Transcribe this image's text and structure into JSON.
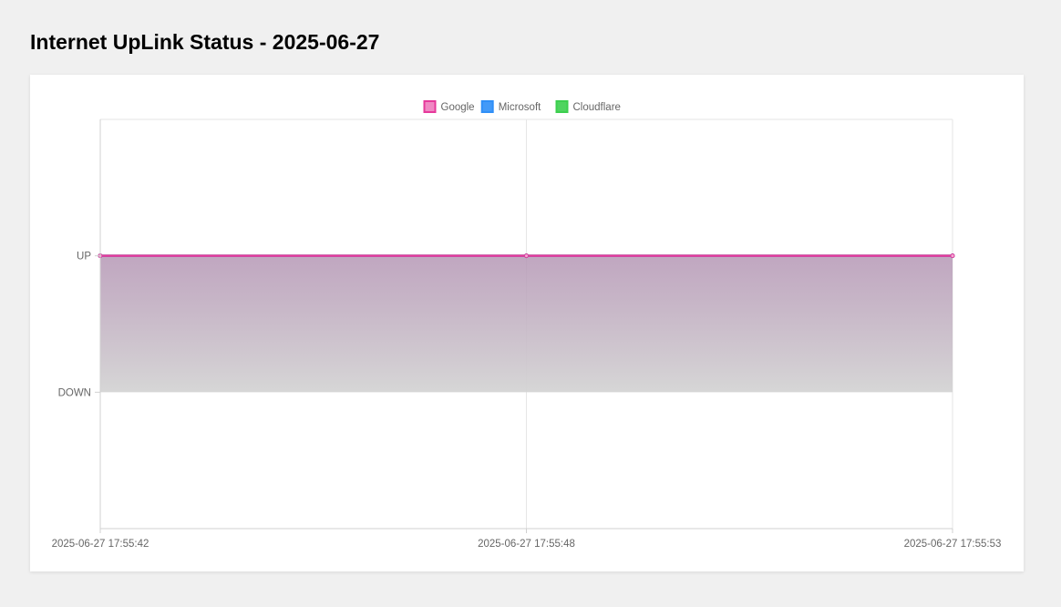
{
  "page": {
    "title": "Internet UpLink Status - 2025-06-27"
  },
  "chart_data": {
    "type": "line",
    "categories": [
      "2025-06-27 17:55:42",
      "2025-06-27 17:55:48",
      "2025-06-27 17:55:53"
    ],
    "y_categories": [
      "DOWN",
      "UP"
    ],
    "ylim": [
      -1,
      2
    ],
    "grid": true,
    "legend_position": "top-center",
    "series": [
      {
        "name": "Google",
        "values": [
          1,
          1,
          1
        ],
        "color": "#e6399b",
        "fill": true
      },
      {
        "name": "Microsoft",
        "values": [
          1,
          1,
          1
        ],
        "color": "#2f8ff7",
        "fill": true
      },
      {
        "name": "Cloudflare",
        "values": [
          1,
          1,
          1
        ],
        "color": "#3ccf4e",
        "fill": true
      }
    ]
  }
}
